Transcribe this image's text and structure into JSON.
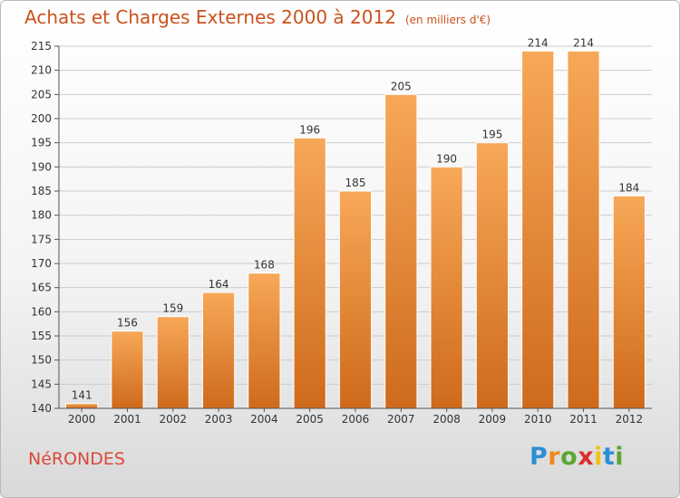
{
  "header": {
    "title": "Achats et Charges Externes 2000 à 2012",
    "subtitle": "(en milliers d'€)"
  },
  "footer": {
    "commune": "NéRONDES",
    "logo_letters": [
      "P",
      "r",
      "o",
      "x",
      "i",
      "t",
      "i"
    ],
    "logo_colors": [
      "#2c8fd6",
      "#f08a1a",
      "#5aa832",
      "#d9302f",
      "#f2c21a",
      "#2c8fd6",
      "#5aa832"
    ]
  },
  "colors": {
    "bar_light": "#f7a858",
    "bar_dark": "#cf6a1c",
    "grid": "#cccccc",
    "axis": "#555555"
  },
  "chart_data": {
    "type": "bar",
    "categories": [
      "2000",
      "2001",
      "2002",
      "2003",
      "2004",
      "2005",
      "2006",
      "2007",
      "2008",
      "2009",
      "2010",
      "2011",
      "2012"
    ],
    "values": [
      141,
      156,
      159,
      164,
      168,
      196,
      185,
      205,
      190,
      195,
      214,
      214,
      184
    ],
    "title": "Achats et Charges Externes 2000 à 2012",
    "ylim": [
      140,
      215
    ],
    "yticks": [
      140,
      145,
      150,
      155,
      160,
      165,
      170,
      175,
      180,
      185,
      190,
      195,
      200,
      205,
      210,
      215
    ],
    "grid": true
  }
}
